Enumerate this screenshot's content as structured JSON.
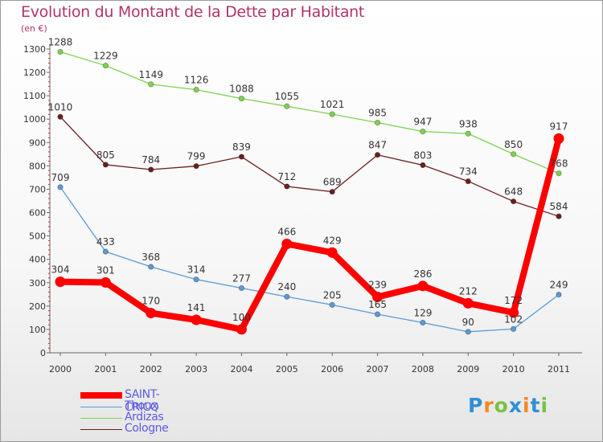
{
  "header": {
    "title": "Evolution du Montant de la Dette par Habitant",
    "unit": "(en €)"
  },
  "logo": {
    "text": "Proxiti",
    "letters": [
      {
        "ch": "P",
        "color": "#2f8fd8"
      },
      {
        "ch": "r",
        "color": "#f28a1d"
      },
      {
        "ch": "o",
        "color": "#7ac143"
      },
      {
        "ch": "x",
        "color": "#2f8fd8"
      },
      {
        "ch": "i",
        "color": "#f28a1d"
      },
      {
        "ch": "t",
        "color": "#2f8fd8"
      },
      {
        "ch": "i",
        "color": "#7ac143"
      }
    ]
  },
  "chart_data": {
    "type": "line",
    "title": "Evolution du Montant de la Dette par Habitant",
    "xlabel": "",
    "ylabel": "(en €)",
    "ylim": [
      0,
      1300
    ],
    "yticks": [
      0,
      100,
      200,
      300,
      400,
      500,
      600,
      700,
      800,
      900,
      1000,
      1100,
      1200,
      1300
    ],
    "grid": false,
    "legend_position": "bottom-left",
    "x": [
      "2000",
      "2001",
      "2002",
      "2003",
      "2004",
      "2005",
      "2006",
      "2007",
      "2008",
      "2009",
      "2010",
      "2011"
    ],
    "series": [
      {
        "name": "SAINT-CRICQ",
        "color": "#ff0000",
        "emphasis": true,
        "values": [
          304,
          301,
          170,
          141,
          100,
          466,
          429,
          239,
          286,
          212,
          172,
          917
        ]
      },
      {
        "name": "Thoux",
        "color": "#5b9bd5",
        "emphasis": false,
        "values": [
          709,
          433,
          368,
          314,
          277,
          240,
          205,
          165,
          129,
          90,
          102,
          249
        ]
      },
      {
        "name": "Ardizas",
        "color": "#7dd34f",
        "emphasis": false,
        "values": [
          1288,
          1229,
          1149,
          1126,
          1088,
          1055,
          1021,
          985,
          947,
          938,
          850,
          768
        ]
      },
      {
        "name": "Cologne",
        "color": "#6b1f1f",
        "emphasis": false,
        "values": [
          1010,
          805,
          784,
          799,
          839,
          712,
          689,
          847,
          803,
          734,
          648,
          584
        ]
      }
    ]
  }
}
